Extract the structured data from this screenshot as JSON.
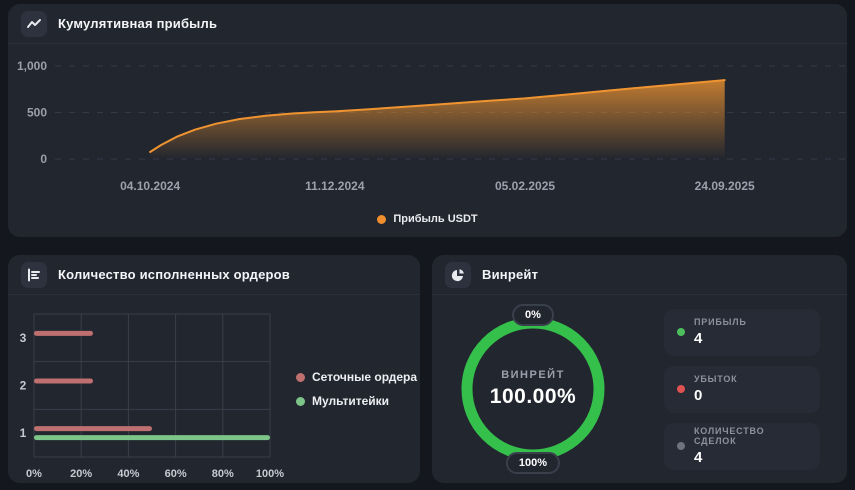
{
  "colors": {
    "page_bg": "#15171e",
    "panel_bg": "#22262f",
    "accent_orange": "#ef9430",
    "bar_red": "#bf6f6f",
    "bar_green": "#7cc487",
    "donut_green": "#35bf4b",
    "profit_dot_green": "#4cbf5c",
    "loss_dot_red": "#e05252",
    "count_dot_gray": "#6e7380"
  },
  "panels": {
    "cumulative": {
      "title": "Кумулятивная прибыль",
      "icon": "trend-line-icon"
    },
    "orders": {
      "title": "Количество исполненных ордеров",
      "icon": "bar-list-icon"
    },
    "winrate": {
      "title": "Винрейт",
      "icon": "pie-chart-icon",
      "stats": [
        {
          "label": "ПРИБЫЛЬ",
          "value": "4",
          "color": "#4cbf5c"
        },
        {
          "label": "УБЫТОК",
          "value": "0",
          "color": "#e05252"
        },
        {
          "label": "КОЛИЧЕСТВО СДЕЛОК",
          "value": "4",
          "color": "#6e7380"
        }
      ]
    }
  },
  "chart_data": [
    {
      "id": "cumulative-profit",
      "type": "area",
      "title": "Кумулятивная прибыль",
      "ylabel": "",
      "xlabel": "",
      "ylim": [
        0,
        1150
      ],
      "grid": "dashed-horizontal",
      "legend_position": "bottom-center",
      "y_ticks": [
        {
          "label": "0",
          "value": 0
        },
        {
          "label": "500",
          "value": 500
        },
        {
          "label": "1,000",
          "value": 1000
        }
      ],
      "x_ticks": [
        {
          "label": "04.10.2024",
          "pos": 0.121
        },
        {
          "label": "11.12.2024",
          "pos": 0.356
        },
        {
          "label": "05.02.2025",
          "pos": 0.598
        },
        {
          "label": "24.09.2025",
          "pos": 0.852
        }
      ],
      "legend": [
        {
          "label": "Прибыль USDT",
          "color": "#ef9430"
        }
      ],
      "series": [
        {
          "name": "Прибыль USDT",
          "color": "#ef9430",
          "points": [
            [
              0.121,
              75
            ],
            [
              0.135,
              150
            ],
            [
              0.155,
              240
            ],
            [
              0.178,
              315
            ],
            [
              0.205,
              380
            ],
            [
              0.235,
              430
            ],
            [
              0.268,
              465
            ],
            [
              0.3,
              488
            ],
            [
              0.33,
              502
            ],
            [
              0.356,
              512
            ],
            [
              0.4,
              535
            ],
            [
              0.45,
              565
            ],
            [
              0.5,
              595
            ],
            [
              0.55,
              625
            ],
            [
              0.598,
              652
            ],
            [
              0.65,
              692
            ],
            [
              0.7,
              732
            ],
            [
              0.75,
              772
            ],
            [
              0.8,
              810
            ],
            [
              0.852,
              848
            ]
          ]
        }
      ]
    },
    {
      "id": "executed-orders",
      "type": "bar",
      "orientation": "horizontal",
      "title": "Количество исполненных ордеров",
      "categories": [
        "3",
        "2",
        "1"
      ],
      "xlim": [
        0,
        100
      ],
      "grid": "full",
      "legend_position": "right",
      "x_ticks": [
        "0%",
        "20%",
        "40%",
        "60%",
        "80%",
        "100%"
      ],
      "series": [
        {
          "name": "Сеточные ордера",
          "color": "#bf6f6f",
          "values": [
            25,
            25,
            50
          ]
        },
        {
          "name": "Мультитейки",
          "color": "#7cc487",
          "values": [
            0,
            0,
            100
          ]
        }
      ]
    },
    {
      "id": "winrate",
      "type": "pie",
      "title": "Винрейт",
      "center_label": "ВИНРЕЙТ",
      "center_value": "100.00%",
      "values": [
        {
          "label": "Винрейт",
          "value": 100,
          "color": "#35bf4b"
        }
      ],
      "top_badge": "0%",
      "bottom_badge": "100%"
    }
  ]
}
